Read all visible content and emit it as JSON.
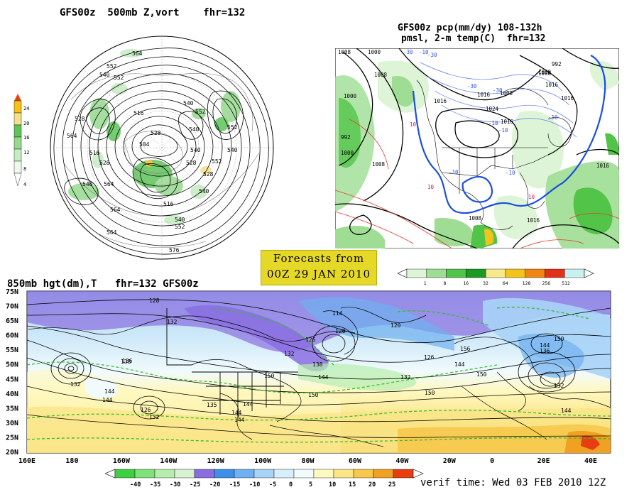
{
  "panels": {
    "hemi": {
      "title": "GFS00z  500mb Z,vort    fhr=132",
      "contour_labels": [
        "564",
        "552",
        "540",
        "552",
        "528",
        "516",
        "540",
        "552",
        "564",
        "528",
        "540",
        "552",
        "516",
        "504",
        "528",
        "540",
        "528",
        "540",
        "528",
        "564",
        "540",
        "552",
        "540",
        "540",
        "552",
        "564",
        "516",
        "576",
        "564"
      ],
      "legend_ticks": [
        "24",
        "20",
        "16",
        "12",
        "8",
        "4"
      ],
      "colors": [
        "#f0f9ee",
        "#c6ecc2",
        "#96d98f",
        "#5fc45a",
        "#f4e18a",
        "#f5c11a",
        "#ec7812"
      ]
    },
    "qpf": {
      "title_line1": "GFS00z pcp(mm/dy) 108-132h",
      "title_line2": "pmsl, 2-m temp(C)  fhr=132",
      "isobar_labels": [
        "1008",
        "1000",
        "1008",
        "1000",
        "992",
        "1000",
        "1008",
        "1016",
        "1016",
        "1024",
        "1008",
        "1016",
        "1000",
        "992",
        "1000",
        "1016",
        "1008",
        "1016",
        "1016",
        "1016"
      ],
      "temp_labels": [
        "-30",
        "-10",
        "-30",
        "-30",
        "-10",
        "-30",
        "-10",
        "-10",
        "10",
        "10",
        "10",
        "-10",
        "-10"
      ],
      "legend_ticks": [
        "1",
        "8",
        "16",
        "32",
        "64",
        "128",
        "256",
        "512"
      ],
      "legend_colors": [
        "#ddf4d6",
        "#9edd93",
        "#52c447",
        "#1c9a26",
        "#f8e88c",
        "#f3c31c",
        "#ef8512",
        "#e3301a",
        "#c8f0ef"
      ]
    },
    "forecast_box": {
      "line1": "Forecasts from",
      "line2": "00Z 29 JAN 2010"
    },
    "h850": {
      "title": "850mb hgt(dm),T   fhr=132 GFS00z",
      "lat_labels": [
        "75N",
        "70N",
        "65N",
        "60N",
        "55N",
        "50N",
        "45N",
        "40N",
        "35N",
        "30N",
        "25N",
        "20N"
      ],
      "lon_labels": [
        "160E",
        "180",
        "160W",
        "140W",
        "120W",
        "100W",
        "80W",
        "60W",
        "40W",
        "20W",
        "0",
        "20E",
        "40E"
      ],
      "height_labels": [
        "128",
        "132",
        "114",
        "120",
        "120",
        "126",
        "132",
        "136",
        "132",
        "138",
        "144",
        "126",
        "144",
        "150",
        "156",
        "150",
        "144",
        "138",
        "132",
        "126",
        "132",
        "144",
        "135",
        "150",
        "150",
        "144",
        "136",
        "132",
        "144",
        "144",
        "144",
        "150",
        "144"
      ],
      "verif_time": "verif time: Wed 03 FEB 2010 12Z",
      "colorbar_ticks": [
        "-40",
        "-35",
        "-30",
        "-25",
        "-20",
        "-15",
        "-10",
        "-5",
        "0",
        "5",
        "10",
        "15",
        "20",
        "25"
      ],
      "colorbar_colors": [
        "#3fcf40",
        "#80e07a",
        "#b6ecae",
        "#d7f1d2",
        "#8a6ee0",
        "#3f8fe8",
        "#6fb0f0",
        "#a8d3f6",
        "#d8eefa",
        "#f1fbfd",
        "#fff8bf",
        "#fae587",
        "#f6c84b",
        "#f0a022",
        "#e83d10"
      ]
    }
  }
}
